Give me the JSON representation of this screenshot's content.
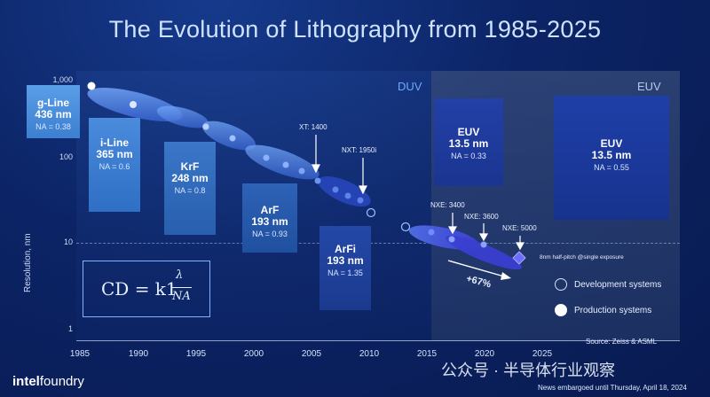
{
  "title": "The Evolution of Lithography from 1985-2025",
  "eras": {
    "duv": "DUV",
    "euv": "EUV"
  },
  "y_axis": {
    "label": "Resolution, nm",
    "ticks": [
      "1,000",
      "100",
      "10",
      "1"
    ]
  },
  "x_axis": {
    "ticks": [
      "1985",
      "1990",
      "1995",
      "2000",
      "2005",
      "2010",
      "2015",
      "2020",
      "2025"
    ]
  },
  "boxes": [
    {
      "name": "g-Line",
      "wavelength": "436 nm",
      "na": "NA = 0.38"
    },
    {
      "name": "i-Line",
      "wavelength": "365 nm",
      "na": "NA = 0.6"
    },
    {
      "name": "KrF",
      "wavelength": "248 nm",
      "na": "NA = 0.8"
    },
    {
      "name": "ArF",
      "wavelength": "193 nm",
      "na": "NA = 0.93"
    },
    {
      "name": "ArFi",
      "wavelength": "193 nm",
      "na": "NA = 1.35"
    },
    {
      "name": "EUV",
      "wavelength": "13.5 nm",
      "na": "NA = 0.33"
    },
    {
      "name": "EUV",
      "wavelength": "13.5 nm",
      "na": "NA = 0.55"
    }
  ],
  "system_labels": {
    "xt1400": "XT: 1400",
    "nxt1950i": "NXT: 1950i",
    "nxe3400": "NXE: 3400",
    "nxe3600": "NXE: 3600",
    "nxe5000": "NXE: 5000"
  },
  "annotations": {
    "half_pitch": "8nm half-pitch @single exposure",
    "improvement": "+67%"
  },
  "formula": {
    "lhs": "CD = k1",
    "numerator": "λ",
    "denominator": "NA"
  },
  "legend": {
    "development": "Development systems",
    "production": "Production systems"
  },
  "source": "Source: Zeiss & ASML",
  "brand": {
    "part1": "intel",
    "part2": "foundry"
  },
  "watermark": "公众号 · 半导体行业观察",
  "embargo": "News embargoed until Thursday, April 18, 2024",
  "colors": {
    "accent": "#6fa8ff",
    "background": "#0a1f5c",
    "euv_panel": "#4a5c82"
  }
}
